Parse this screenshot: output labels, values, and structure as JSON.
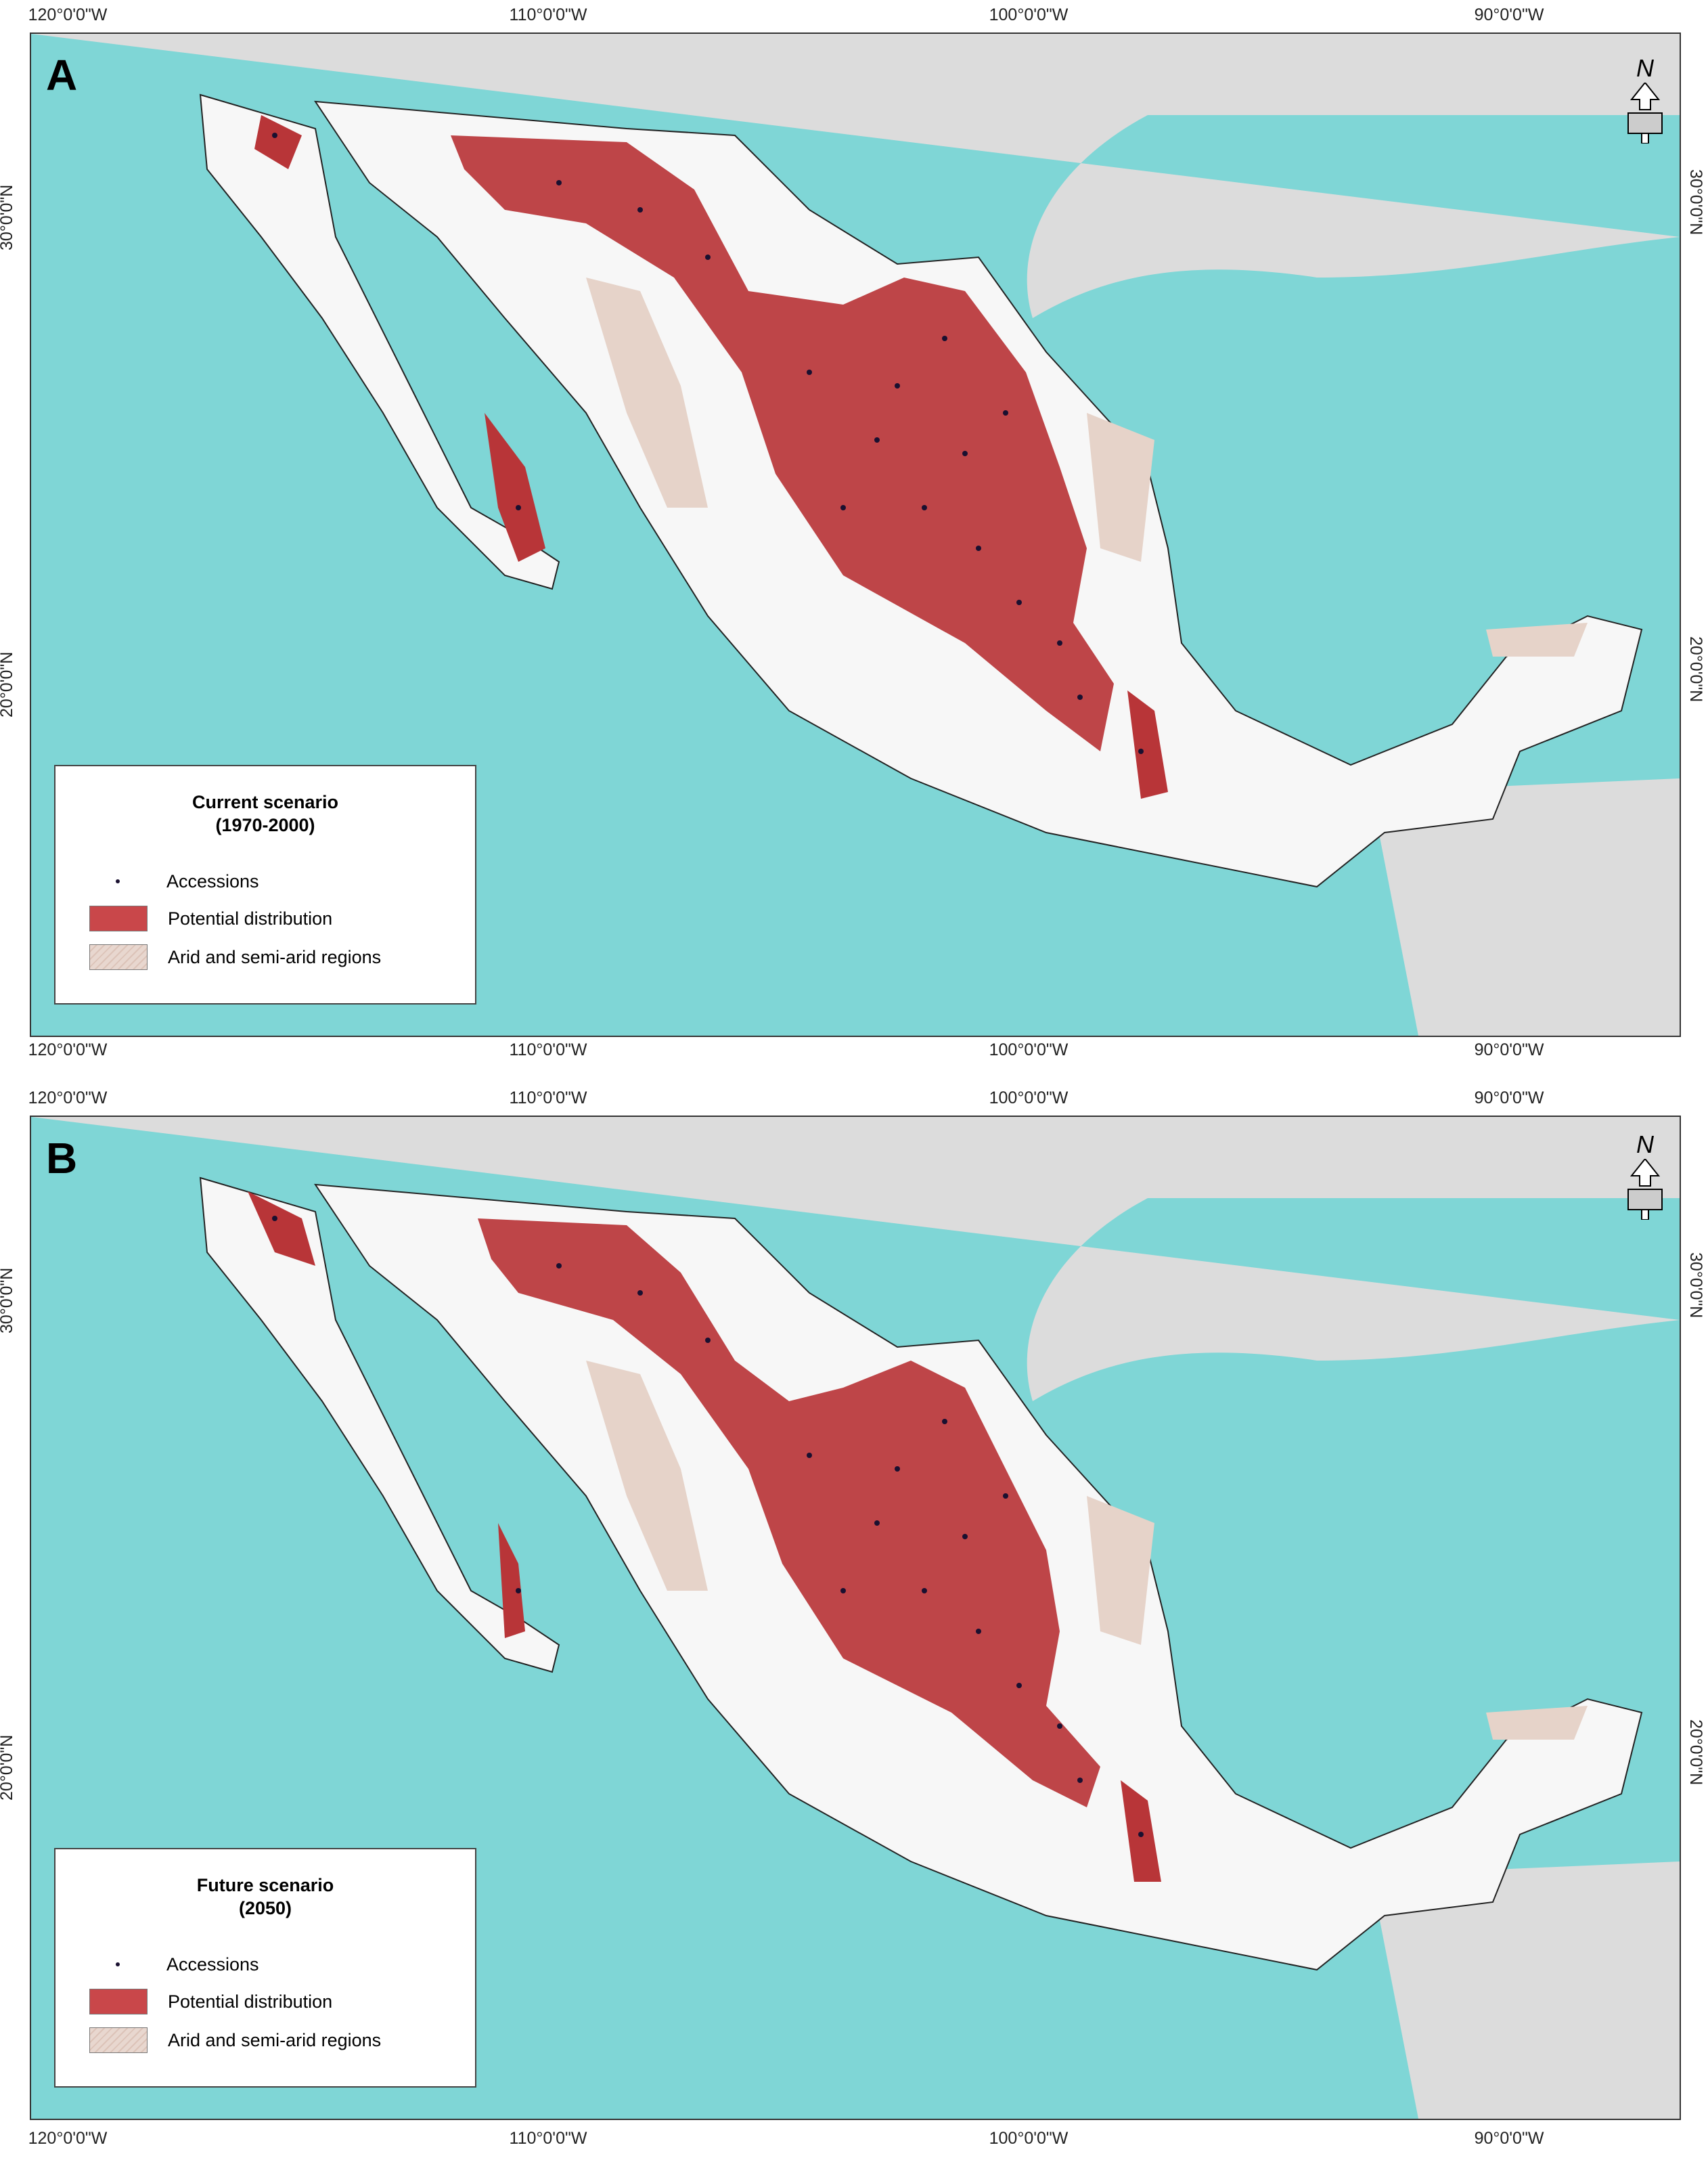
{
  "colors": {
    "sea": "#7fd6d6",
    "land_other": "#dcdcdc",
    "mexico_land": "#f7f7f7",
    "potential_distribution": "#b83538",
    "arid_regions": "#e6d3c9",
    "accessions": "#1a1030",
    "borders": "#222222"
  },
  "axes": {
    "top_longitudes": [
      "120°0'0\"W",
      "110°0'0\"W",
      "100°0'0\"W",
      "90°0'0\"W"
    ],
    "bottom_longitudes": [
      "120°0'0\"W",
      "110°0'0\"W",
      "100°0'0\"W",
      "90°0'0\"W"
    ],
    "latitudes": [
      "30°0'0\"N",
      "20°0'0\"N"
    ]
  },
  "panels": [
    {
      "label": "A",
      "legend": {
        "title_line1": "Current scenario",
        "title_line2": "(1970-2000)",
        "items": [
          "Accessions",
          "Potential distribution",
          "Arid and semi-arid regions"
        ]
      },
      "north_label": "N"
    },
    {
      "label": "B",
      "legend": {
        "title_line1": "Future scenario",
        "title_line2": "(2050)",
        "items": [
          "Accessions",
          "Potential distribution",
          "Arid and semi-arid regions"
        ]
      },
      "north_label": "N"
    }
  ]
}
